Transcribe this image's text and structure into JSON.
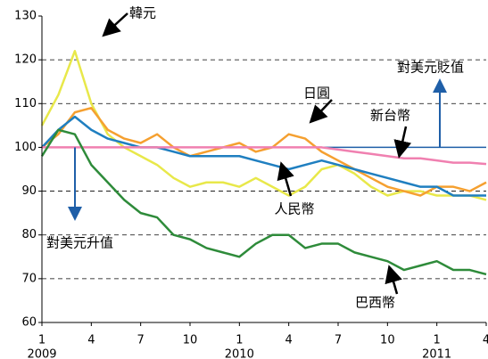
{
  "chart_data": {
    "type": "line",
    "x": [
      "2009-01",
      "2009-02",
      "2009-03",
      "2009-04",
      "2009-05",
      "2009-06",
      "2009-07",
      "2009-08",
      "2009-09",
      "2009-10",
      "2009-11",
      "2009-12",
      "2010-01",
      "2010-02",
      "2010-03",
      "2010-04",
      "2010-05",
      "2010-06",
      "2010-07",
      "2010-08",
      "2010-09",
      "2010-10",
      "2010-11",
      "2010-12",
      "2011-01",
      "2011-02",
      "2011-03",
      "2011-04"
    ],
    "series": [
      {
        "name": "韓元",
        "color": "#e8e84a",
        "values": [
          105,
          112,
          122,
          110,
          103,
          100,
          98,
          96,
          93,
          91,
          92,
          92,
          91,
          93,
          91,
          89,
          91,
          95,
          96,
          94,
          91,
          89,
          90,
          90,
          89,
          89,
          89,
          88
        ]
      },
      {
        "name": "日圓",
        "color": "#f5a030",
        "values": [
          100,
          103,
          108,
          109,
          104,
          102,
          101,
          103,
          100,
          98,
          99,
          100,
          101,
          99,
          100,
          103,
          102,
          99,
          97,
          95,
          93,
          91,
          90,
          89,
          91,
          91,
          90,
          92
        ]
      },
      {
        "name": "新台幣",
        "color": "#1f7fc0",
        "values": [
          100,
          104,
          107,
          104,
          102,
          101,
          100,
          100,
          99,
          98,
          98,
          98,
          98,
          97,
          96,
          95,
          96,
          97,
          96,
          95,
          94,
          93,
          92,
          91,
          91,
          89,
          89,
          89
        ]
      },
      {
        "name": "人民幣",
        "color": "#f080b0",
        "values": [
          100,
          100,
          100,
          100,
          100,
          100,
          100,
          100,
          100,
          100,
          100,
          100,
          100,
          100,
          100,
          100,
          100,
          100,
          99.5,
          99,
          98.5,
          98,
          97.5,
          97.5,
          97,
          96.5,
          96.5,
          96.2
        ]
      },
      {
        "name": "巴西幣",
        "color": "#2e8b3a",
        "values": [
          98,
          104,
          103,
          96,
          92,
          88,
          85,
          84,
          80,
          79,
          77,
          76,
          75,
          78,
          80,
          80,
          77,
          78,
          78,
          76,
          75,
          74,
          72,
          73,
          74,
          72,
          72,
          71
        ]
      }
    ],
    "reference_line": 100,
    "reference_color": "#1f5fa8",
    "annotations": [
      "對美元貶值",
      "對美元升值"
    ],
    "ylim": [
      60,
      130
    ],
    "yticks": [
      60,
      70,
      80,
      90,
      100,
      110,
      120,
      130
    ],
    "xticks": [
      {
        "value": "2009-01",
        "label": "1",
        "year": "2009"
      },
      {
        "value": "2009-04",
        "label": "4"
      },
      {
        "value": "2009-07",
        "label": "7"
      },
      {
        "value": "2009-10",
        "label": "10"
      },
      {
        "value": "2010-01",
        "label": "1",
        "year": "2010"
      },
      {
        "value": "2010-04",
        "label": "4"
      },
      {
        "value": "2010-07",
        "label": "7"
      },
      {
        "value": "2010-10",
        "label": "10"
      },
      {
        "value": "2011-01",
        "label": "1",
        "year": "2011"
      },
      {
        "value": "2011-04",
        "label": "4"
      }
    ],
    "grid": true
  }
}
